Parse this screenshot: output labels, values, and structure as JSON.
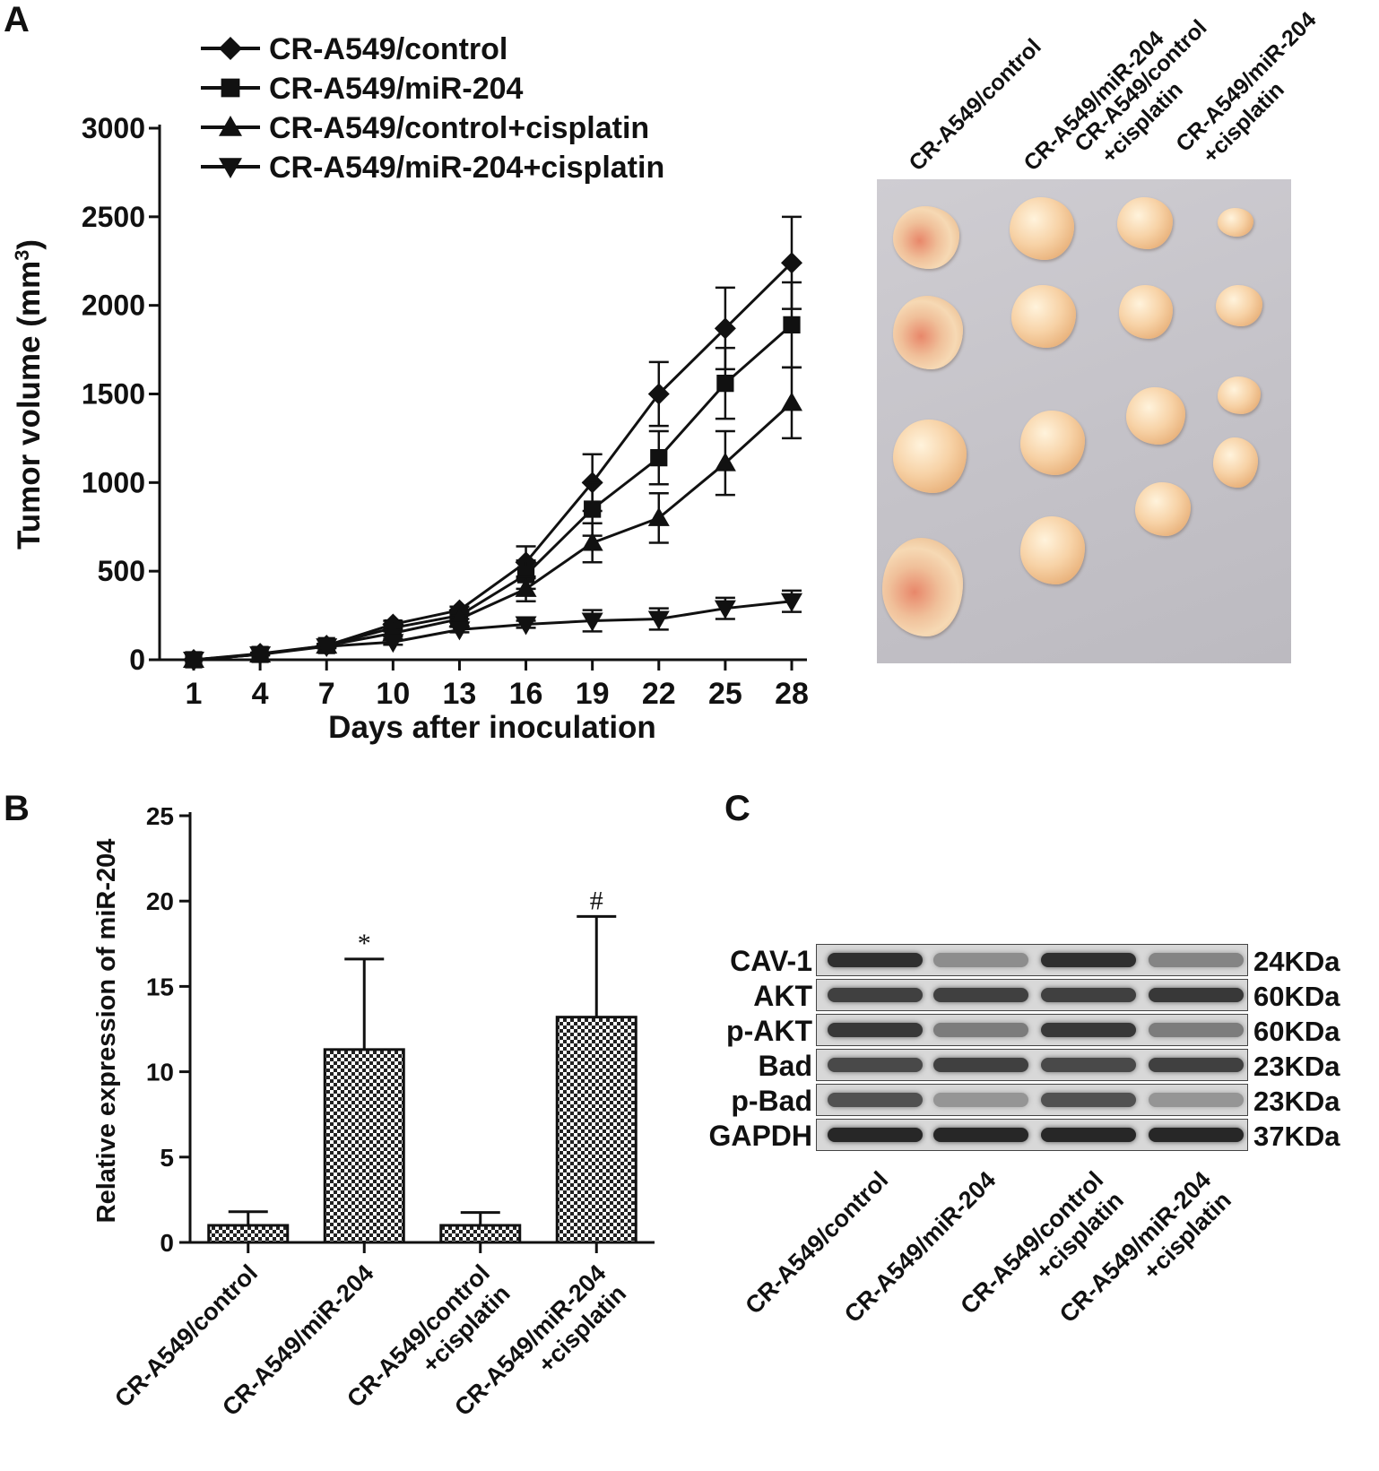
{
  "panels": {
    "a": "A",
    "b": "B",
    "c": "C"
  },
  "chart_data": [
    {
      "type": "line",
      "panel": "A",
      "xlabel": "Days after inoculation",
      "ylabel": "Tumor volume (mm",
      "ylabel_sup": "3",
      "ylabel_close": ")",
      "x": [
        1,
        4,
        7,
        10,
        13,
        16,
        19,
        22,
        25,
        28
      ],
      "ylim": [
        0,
        3000
      ],
      "yticks": [
        "0",
        "500",
        "1000",
        "1500",
        "2000",
        "2500",
        "3000"
      ],
      "legend_position": "top-left",
      "series": [
        {
          "name": "CR-A549/control",
          "marker": "diamond",
          "values": [
            0,
            35,
            80,
            200,
            280,
            550,
            1000,
            1500,
            1870,
            2240
          ],
          "errors": [
            0,
            5,
            10,
            20,
            20,
            90,
            160,
            180,
            230,
            260
          ]
        },
        {
          "name": "CR-A549/miR-204",
          "marker": "square",
          "values": [
            0,
            30,
            80,
            180,
            250,
            480,
            850,
            1140,
            1560,
            1890
          ],
          "errors": [
            0,
            5,
            10,
            20,
            20,
            80,
            150,
            150,
            200,
            240
          ]
        },
        {
          "name": "CR-A549/control+cisplatin",
          "marker": "triangle-up",
          "values": [
            0,
            30,
            80,
            150,
            230,
            400,
            660,
            800,
            1110,
            1450
          ],
          "errors": [
            0,
            5,
            10,
            20,
            20,
            70,
            110,
            140,
            180,
            200
          ]
        },
        {
          "name": "CR-A549/miR-204+cisplatin",
          "marker": "triangle-down",
          "values": [
            0,
            30,
            75,
            100,
            170,
            200,
            220,
            230,
            290,
            330
          ],
          "errors": [
            0,
            5,
            10,
            15,
            15,
            20,
            60,
            60,
            60,
            60
          ]
        }
      ]
    },
    {
      "type": "bar",
      "panel": "B",
      "ylabel": "Relative expression of miR-204",
      "ylim": [
        0,
        25
      ],
      "yticks": [
        "0",
        "5",
        "10",
        "15",
        "20",
        "25"
      ],
      "categories": [
        [
          "CR-A549/control"
        ],
        [
          "CR-A549/miR-204"
        ],
        [
          "CR-A549/control",
          "+cisplatin"
        ],
        [
          "CR-A549/miR-204",
          "+cisplatin"
        ]
      ],
      "values": [
        1,
        11.3,
        1,
        13.2
      ],
      "errors": [
        0.8,
        5.3,
        0.75,
        5.9
      ],
      "annotations": [
        "",
        "*",
        "",
        "#"
      ]
    }
  ],
  "photo": {
    "labels": [
      [
        "CR-A549/control"
      ],
      [
        "CR-A549/miR-204"
      ],
      [
        "CR-A549/control",
        "+cisplatin"
      ],
      [
        "CR-A549/miR-204",
        "+cisplatin"
      ]
    ]
  },
  "western": {
    "proteins": [
      "CAV-1",
      "AKT",
      "p-AKT",
      "Bad",
      "p-Bad",
      "GAPDH"
    ],
    "sizes": [
      "24KDa",
      "60KDa",
      "60KDa",
      "23KDa",
      "23KDa",
      "37KDa"
    ],
    "band_intensity": [
      [
        0.9,
        0.35,
        0.9,
        0.4
      ],
      [
        0.8,
        0.8,
        0.8,
        0.85
      ],
      [
        0.85,
        0.45,
        0.85,
        0.45
      ],
      [
        0.75,
        0.8,
        0.75,
        0.8
      ],
      [
        0.7,
        0.3,
        0.7,
        0.3
      ],
      [
        0.95,
        0.95,
        0.95,
        0.95
      ]
    ],
    "lane_labels": [
      [
        "CR-A549/control"
      ],
      [
        "CR-A549/miR-204"
      ],
      [
        "CR-A549/control",
        "+cisplatin"
      ],
      [
        "CR-A549/miR-204",
        "+cisplatin"
      ]
    ]
  }
}
